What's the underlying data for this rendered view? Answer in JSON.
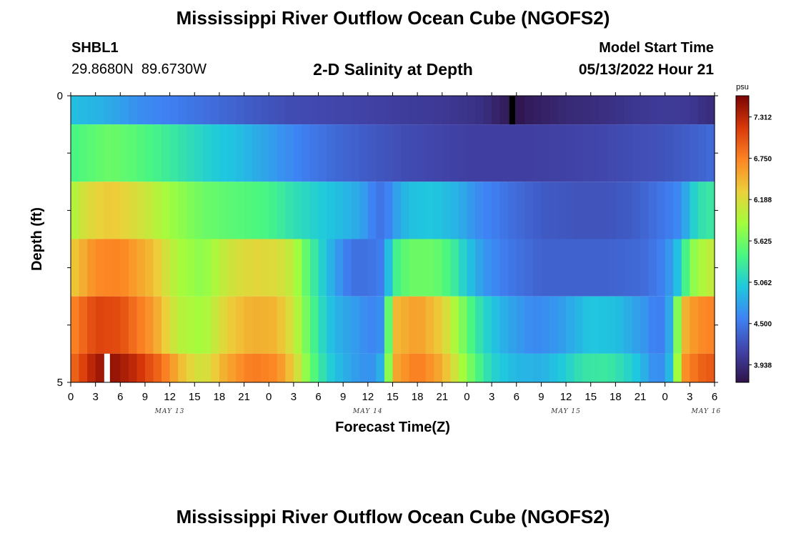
{
  "header": {
    "title": "Mississippi River Outflow Ocean Cube (NGOFS2)",
    "station_name": "SHBL1",
    "station_coords": "29.8680N  89.6730W",
    "subtitle": "2-D Salinity at Depth",
    "model_label": "Model Start Time",
    "model_time": "05/13/2022 Hour 21"
  },
  "footer": {
    "title": "Mississippi River Outflow Ocean Cube (NGOFS2)"
  },
  "colors": {
    "background": "#ffffff",
    "colormap": [
      "#2f1349",
      "#4143a8",
      "#3f82f4",
      "#1fc8de",
      "#4af780",
      "#a3fd3d",
      "#ecd03a",
      "#fc8524",
      "#d8380a",
      "#7a0403"
    ]
  },
  "chart_data": {
    "type": "heatmap",
    "title": "2-D Salinity at Depth",
    "xlabel": "Forecast Time(Z)",
    "ylabel": "Depth (ft)",
    "x_tick_labels": [
      "0",
      "3",
      "6",
      "9",
      "12",
      "15",
      "18",
      "21",
      "0",
      "3",
      "6",
      "9",
      "12",
      "15",
      "18",
      "21",
      "0",
      "3",
      "6",
      "9",
      "12",
      "15",
      "18",
      "21",
      "0",
      "3",
      "6"
    ],
    "day_labels": [
      {
        "label": "MAY 13",
        "hour": 12
      },
      {
        "label": "MAY 14",
        "hour": 36
      },
      {
        "label": "MAY 15",
        "hour": 60
      },
      {
        "label": "MAY 16",
        "hour": 77
      }
    ],
    "x_range_hours": [
      0,
      78
    ],
    "y_tick_labels": [
      "0",
      "5"
    ],
    "y_range_ft": [
      0,
      5
    ],
    "depth_levels": 5,
    "colorbar": {
      "unit": "psu",
      "ticks": [
        "7.312",
        "6.750",
        "6.188",
        "5.625",
        "5.062",
        "4.500",
        "3.938"
      ],
      "min": 3.7,
      "max": 7.6
    },
    "layers": [
      {
        "row": 1,
        "top_ft": 0.0,
        "bottom_ft": 0.5,
        "knots": [
          [
            0,
            4.95
          ],
          [
            4,
            4.85
          ],
          [
            8,
            4.65
          ],
          [
            14,
            4.5
          ],
          [
            20,
            4.35
          ],
          [
            26,
            4.2
          ],
          [
            32,
            4.15
          ],
          [
            38,
            4.1
          ],
          [
            44,
            4.05
          ],
          [
            48,
            4.0
          ],
          [
            50,
            3.95
          ],
          [
            52,
            3.82
          ],
          [
            54,
            3.72
          ],
          [
            56,
            3.8
          ],
          [
            58,
            3.85
          ],
          [
            60,
            3.9
          ],
          [
            62,
            3.92
          ],
          [
            65,
            3.96
          ],
          [
            68,
            4.02
          ],
          [
            72,
            4.06
          ],
          [
            75,
            4.04
          ],
          [
            76,
            4.0
          ],
          [
            77,
            3.95
          ],
          [
            78,
            3.92
          ]
        ]
      },
      {
        "row": 2,
        "top_ft": 0.5,
        "bottom_ft": 1.5,
        "knots": [
          [
            0,
            5.4
          ],
          [
            2,
            5.5
          ],
          [
            5,
            5.6
          ],
          [
            9,
            5.45
          ],
          [
            13,
            5.25
          ],
          [
            17,
            5.05
          ],
          [
            20,
            4.95
          ],
          [
            24,
            4.75
          ],
          [
            28,
            4.55
          ],
          [
            32,
            4.4
          ],
          [
            36,
            4.3
          ],
          [
            40,
            4.2
          ],
          [
            44,
            4.15
          ],
          [
            48,
            4.1
          ],
          [
            52,
            4.1
          ],
          [
            56,
            4.1
          ],
          [
            60,
            4.12
          ],
          [
            64,
            4.15
          ],
          [
            68,
            4.2
          ],
          [
            72,
            4.25
          ],
          [
            74,
            4.3
          ],
          [
            76,
            4.35
          ],
          [
            78,
            4.42
          ]
        ]
      },
      {
        "row": 3,
        "top_ft": 1.5,
        "bottom_ft": 2.5,
        "knots": [
          [
            0,
            5.9
          ],
          [
            2,
            6.2
          ],
          [
            5,
            6.35
          ],
          [
            9,
            6.1
          ],
          [
            12,
            5.85
          ],
          [
            16,
            5.6
          ],
          [
            20,
            5.5
          ],
          [
            24,
            5.4
          ],
          [
            27,
            5.2
          ],
          [
            31,
            5.0
          ],
          [
            35,
            4.8
          ],
          [
            37,
            4.5
          ],
          [
            38,
            4.45
          ],
          [
            39,
            4.7
          ],
          [
            41,
            4.95
          ],
          [
            44,
            5.0
          ],
          [
            47,
            4.85
          ],
          [
            49,
            4.65
          ],
          [
            53,
            4.45
          ],
          [
            57,
            4.3
          ],
          [
            61,
            4.25
          ],
          [
            65,
            4.25
          ],
          [
            68,
            4.3
          ],
          [
            70,
            4.4
          ],
          [
            72,
            4.5
          ],
          [
            73,
            4.55
          ],
          [
            74,
            4.65
          ],
          [
            75,
            4.95
          ],
          [
            76,
            5.2
          ],
          [
            78,
            5.3
          ]
        ]
      },
      {
        "row": 4,
        "top_ft": 2.5,
        "bottom_ft": 3.5,
        "knots": [
          [
            0,
            6.3
          ],
          [
            3,
            6.7
          ],
          [
            6,
            6.75
          ],
          [
            10,
            6.4
          ],
          [
            13,
            5.9
          ],
          [
            16,
            5.75
          ],
          [
            19,
            6.1
          ],
          [
            22,
            6.25
          ],
          [
            25,
            6.2
          ],
          [
            27,
            6.0
          ],
          [
            29,
            5.4
          ],
          [
            31,
            4.95
          ],
          [
            33,
            4.6
          ],
          [
            34,
            4.45
          ],
          [
            36,
            4.45
          ],
          [
            37,
            4.5
          ],
          [
            38,
            4.55
          ],
          [
            39,
            5.3
          ],
          [
            41,
            5.6
          ],
          [
            44,
            5.6
          ],
          [
            46,
            5.4
          ],
          [
            48,
            5.0
          ],
          [
            50,
            4.7
          ],
          [
            53,
            4.5
          ],
          [
            57,
            4.35
          ],
          [
            61,
            4.35
          ],
          [
            65,
            4.35
          ],
          [
            69,
            4.4
          ],
          [
            71,
            4.5
          ],
          [
            72,
            4.6
          ],
          [
            73,
            4.8
          ],
          [
            74,
            5.1
          ],
          [
            75,
            5.7
          ],
          [
            77,
            6.0
          ],
          [
            78,
            6.05
          ]
        ]
      },
      {
        "row": 5,
        "top_ft": 3.5,
        "bottom_ft": 4.5,
        "knots": [
          [
            0,
            6.7
          ],
          [
            3,
            7.1
          ],
          [
            6,
            7.05
          ],
          [
            10,
            6.6
          ],
          [
            13,
            6.0
          ],
          [
            16,
            5.85
          ],
          [
            19,
            6.3
          ],
          [
            22,
            6.5
          ],
          [
            25,
            6.45
          ],
          [
            27,
            6.1
          ],
          [
            29,
            5.5
          ],
          [
            31,
            5.0
          ],
          [
            33,
            4.8
          ],
          [
            35,
            4.7
          ],
          [
            36,
            4.6
          ],
          [
            37,
            4.6
          ],
          [
            38,
            4.7
          ],
          [
            39,
            6.4
          ],
          [
            42,
            6.6
          ],
          [
            45,
            6.3
          ],
          [
            47,
            5.8
          ],
          [
            49,
            5.3
          ],
          [
            51,
            5.0
          ],
          [
            53,
            4.8
          ],
          [
            56,
            4.6
          ],
          [
            59,
            4.7
          ],
          [
            61,
            4.85
          ],
          [
            63,
            5.0
          ],
          [
            66,
            4.95
          ],
          [
            68,
            4.8
          ],
          [
            70,
            4.65
          ],
          [
            71,
            4.5
          ],
          [
            72,
            4.6
          ],
          [
            73,
            5.0
          ],
          [
            74,
            6.4
          ],
          [
            76,
            6.7
          ],
          [
            78,
            6.75
          ]
        ]
      },
      {
        "row": 6,
        "top_ft": 4.5,
        "bottom_ft": 5.0,
        "knots": [
          [
            0,
            6.85
          ],
          [
            2,
            7.2
          ],
          [
            3,
            7.4
          ],
          [
            5,
            7.5
          ],
          [
            8,
            7.25
          ],
          [
            11,
            6.85
          ],
          [
            14,
            6.3
          ],
          [
            16,
            6.1
          ],
          [
            19,
            6.55
          ],
          [
            22,
            6.8
          ],
          [
            25,
            6.7
          ],
          [
            27,
            6.3
          ],
          [
            29,
            5.6
          ],
          [
            31,
            5.1
          ],
          [
            33,
            4.85
          ],
          [
            35,
            4.7
          ],
          [
            36,
            4.65
          ],
          [
            37,
            4.7
          ],
          [
            38,
            5.0
          ],
          [
            39,
            6.5
          ],
          [
            42,
            6.8
          ],
          [
            45,
            6.5
          ],
          [
            47,
            6.0
          ],
          [
            49,
            5.5
          ],
          [
            51,
            5.1
          ],
          [
            54,
            4.9
          ],
          [
            57,
            4.85
          ],
          [
            60,
            5.05
          ],
          [
            62,
            5.25
          ],
          [
            65,
            5.3
          ],
          [
            67,
            5.15
          ],
          [
            69,
            4.95
          ],
          [
            70,
            4.75
          ],
          [
            71,
            4.6
          ],
          [
            72,
            4.7
          ],
          [
            73,
            5.1
          ],
          [
            74,
            6.6
          ],
          [
            76,
            6.9
          ],
          [
            78,
            7.0
          ]
        ]
      }
    ],
    "markers": [
      {
        "row": 1,
        "hour": 53.5,
        "color": "#000000"
      },
      {
        "row": 6,
        "hour": 4.4,
        "color": "#ffffff"
      }
    ]
  }
}
